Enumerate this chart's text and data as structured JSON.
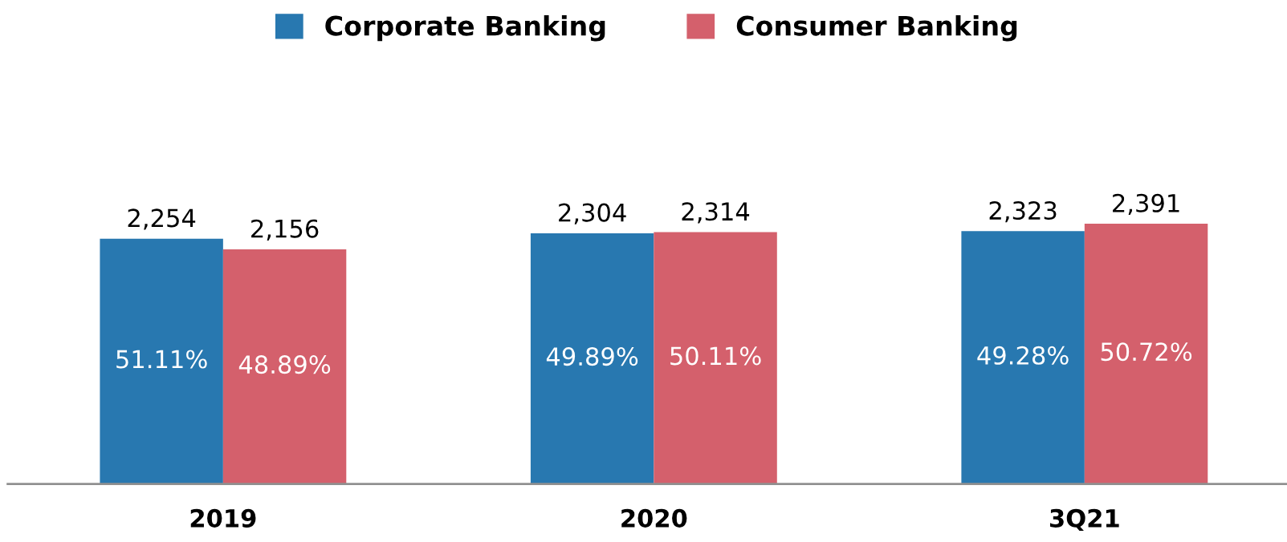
{
  "chart_data": {
    "type": "bar",
    "categories": [
      "2019",
      "2020",
      "3Q21"
    ],
    "series": [
      {
        "name": "Corporate Banking",
        "color": "#2878b0",
        "values": [
          2254,
          2304,
          2323
        ],
        "value_labels": [
          "2,254",
          "2,304",
          "2,323"
        ]
      },
      {
        "name": "Consumer Banking",
        "color": "#d4606c",
        "values": [
          2156,
          2314,
          2391
        ],
        "value_labels": [
          "2,156",
          "2,314",
          "2,391"
        ]
      }
    ],
    "tick_labels": "x",
    "grid": false,
    "legend": "top",
    "annotations": [
      "51.11%",
      "48.89%",
      "49.89%",
      "50.11%",
      "49.28%",
      "50.72%"
    ]
  }
}
